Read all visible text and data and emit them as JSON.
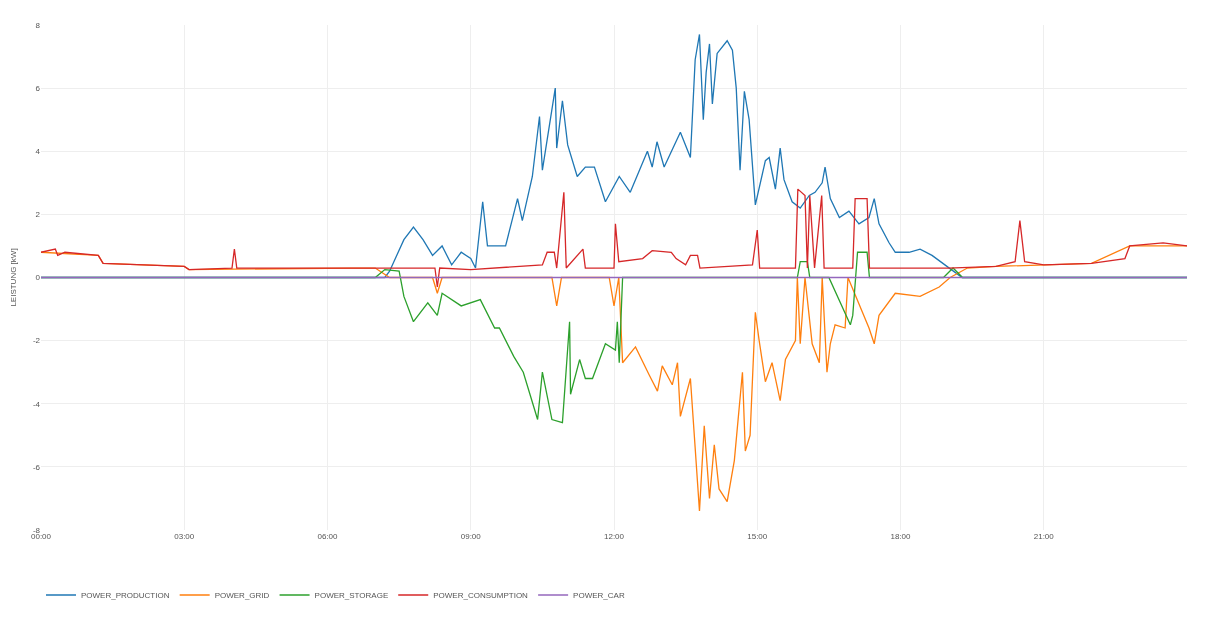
{
  "chart_data": {
    "type": "line",
    "ylabel": "LEISTUNG [kW]",
    "xlim": [
      0,
      24
    ],
    "xticks": [
      {
        "value": 0,
        "label": "00:00"
      },
      {
        "value": 3,
        "label": "03:00"
      },
      {
        "value": 6,
        "label": "06:00"
      },
      {
        "value": 9,
        "label": "09:00"
      },
      {
        "value": 12,
        "label": "12:00"
      },
      {
        "value": 15,
        "label": "15:00"
      },
      {
        "value": 18,
        "label": "18:00"
      },
      {
        "value": 21,
        "label": "21:00"
      }
    ],
    "ylim": [
      -8,
      8
    ],
    "yticks": [
      -8,
      -6,
      -4,
      -2,
      0,
      2,
      4,
      6,
      8
    ],
    "grid": true,
    "legend": "bottom",
    "marker": "none",
    "line_style": "solid",
    "series": [
      {
        "name": "POWER_PRODUCTION",
        "color": "#1f77b4",
        "x": [
          0,
          7.2,
          7.3,
          7.6,
          7.8,
          8.0,
          8.2,
          8.4,
          8.6,
          8.8,
          9.0,
          9.1,
          9.25,
          9.35,
          9.73,
          9.98,
          10.08,
          10.29,
          10.44,
          10.5,
          10.77,
          10.8,
          10.92,
          11.03,
          11.23,
          11.4,
          11.59,
          11.82,
          12.11,
          12.34,
          12.7,
          12.8,
          12.9,
          13.05,
          13.39,
          13.6,
          13.7,
          13.79,
          13.87,
          13.93,
          14.0,
          14.06,
          14.16,
          14.37,
          14.48,
          14.56,
          14.64,
          14.73,
          14.83,
          14.96,
          15.17,
          15.25,
          15.38,
          15.48,
          15.56,
          15.73,
          15.9,
          16.09,
          16.21,
          16.36,
          16.42,
          16.53,
          16.72,
          16.92,
          17.13,
          17.34,
          17.45,
          17.55,
          17.76,
          17.89,
          18.18,
          18.41,
          18.66,
          18.93,
          19.29,
          24
        ],
        "values": [
          0,
          0,
          0.2,
          1.2,
          1.6,
          1.2,
          0.7,
          1.0,
          0.4,
          0.8,
          0.6,
          0.3,
          2.4,
          1.0,
          1.0,
          2.5,
          1.8,
          3.2,
          5.1,
          3.4,
          6.0,
          4.1,
          5.6,
          4.2,
          3.2,
          3.5,
          3.5,
          2.4,
          3.2,
          2.7,
          4.0,
          3.5,
          4.3,
          3.5,
          4.6,
          3.8,
          6.9,
          7.7,
          5.0,
          6.5,
          7.4,
          5.5,
          7.1,
          7.5,
          7.2,
          6.0,
          3.4,
          5.9,
          5.0,
          2.3,
          3.7,
          3.8,
          2.8,
          4.1,
          3.1,
          2.4,
          2.2,
          2.6,
          2.7,
          3.0,
          3.5,
          2.5,
          1.9,
          2.1,
          1.7,
          1.9,
          2.5,
          1.7,
          1.1,
          0.8,
          0.8,
          0.9,
          0.7,
          0.4,
          0,
          0
        ]
      },
      {
        "name": "POWER_GRID",
        "color": "#ff7f0e",
        "x": [
          0,
          1.2,
          1.3,
          3.0,
          3.1,
          6.5,
          7.0,
          7.3,
          8.2,
          8.3,
          8.4,
          10.7,
          10.8,
          10.9,
          11.9,
          12.0,
          12.1,
          12.18,
          12.45,
          12.74,
          12.91,
          13.01,
          13.22,
          13.33,
          13.39,
          13.6,
          13.7,
          13.79,
          13.89,
          14.0,
          14.1,
          14.2,
          14.37,
          14.52,
          14.69,
          14.75,
          14.85,
          14.96,
          15.04,
          15.17,
          15.31,
          15.48,
          15.59,
          15.8,
          15.84,
          15.9,
          16.0,
          16.15,
          16.3,
          16.36,
          16.46,
          16.53,
          16.63,
          16.84,
          16.9,
          17.34,
          17.45,
          17.55,
          17.89,
          18.41,
          18.81,
          19.04,
          19.4,
          20,
          22,
          22.8,
          24
        ],
        "values": [
          0.8,
          0.7,
          0.45,
          0.35,
          0.25,
          0.3,
          0.3,
          0,
          0,
          -0.5,
          0,
          0,
          -0.9,
          0,
          0,
          -0.9,
          0,
          -2.7,
          -2.2,
          -3.1,
          -3.6,
          -2.8,
          -3.4,
          -2.7,
          -4.4,
          -3.2,
          -5.4,
          -7.4,
          -4.7,
          -7.0,
          -5.3,
          -6.7,
          -7.1,
          -5.8,
          -3.0,
          -5.5,
          -5.0,
          -1.1,
          -2.0,
          -3.3,
          -2.7,
          -3.9,
          -2.6,
          -2.0,
          0,
          -2.1,
          0,
          -2.1,
          -2.7,
          0,
          -3.0,
          -2.1,
          -1.5,
          -1.6,
          0,
          -1.6,
          -2.1,
          -1.2,
          -0.5,
          -0.6,
          -0.3,
          0,
          0.3,
          0.35,
          0.45,
          1.0,
          1.0
        ]
      },
      {
        "name": "POWER_STORAGE",
        "color": "#2ca02c",
        "x": [
          0,
          7.0,
          7.2,
          7.5,
          7.6,
          7.8,
          8.1,
          8.3,
          8.4,
          8.8,
          9.2,
          9.5,
          9.6,
          9.9,
          10.1,
          10.4,
          10.5,
          10.7,
          10.92,
          11.07,
          11.09,
          11.28,
          11.4,
          11.55,
          11.82,
          12.03,
          12.07,
          12.11,
          12.18,
          15.84,
          15.9,
          16.05,
          16.1,
          16.5,
          16.95,
          17.0,
          17.1,
          17.3,
          17.35,
          17.4,
          18.9,
          19.1,
          19.3,
          24
        ],
        "values": [
          0,
          0,
          0.25,
          0.2,
          -0.6,
          -1.4,
          -0.8,
          -1.2,
          -0.5,
          -0.9,
          -0.7,
          -1.6,
          -1.6,
          -2.5,
          -3.0,
          -4.5,
          -3.0,
          -4.5,
          -4.6,
          -1.4,
          -3.7,
          -2.6,
          -3.2,
          -3.2,
          -2.1,
          -2.3,
          -1.4,
          -2.7,
          0,
          0,
          0.5,
          0.5,
          0,
          0,
          -1.5,
          -1.2,
          0.8,
          0.8,
          0,
          0,
          0,
          0.3,
          0,
          0
        ]
      },
      {
        "name": "POWER_CONSUMPTION",
        "color": "#d62728",
        "x": [
          0,
          0.3,
          0.35,
          0.5,
          1.2,
          1.3,
          3.0,
          3.1,
          4.0,
          4.05,
          4.1,
          7.5,
          8.25,
          8.3,
          8.35,
          9.0,
          10.5,
          10.6,
          10.75,
          10.8,
          10.95,
          11.0,
          11.35,
          11.4,
          12.0,
          12.03,
          12.1,
          12.6,
          12.8,
          13.2,
          13.3,
          13.5,
          13.6,
          13.75,
          13.8,
          14.9,
          15.0,
          15.05,
          15.8,
          15.85,
          16.0,
          16.05,
          16.1,
          16.2,
          16.35,
          16.4,
          17.0,
          17.05,
          17.3,
          17.35,
          19,
          20,
          20.4,
          20.5,
          20.6,
          21,
          22,
          22.7,
          22.8,
          23.5,
          24
        ],
        "values": [
          0.8,
          0.9,
          0.7,
          0.8,
          0.7,
          0.45,
          0.35,
          0.25,
          0.3,
          0.9,
          0.3,
          0.3,
          0.3,
          -0.3,
          0.3,
          0.25,
          0.4,
          0.8,
          0.8,
          0.3,
          2.7,
          0.3,
          0.9,
          0.3,
          0.3,
          1.7,
          0.5,
          0.6,
          0.85,
          0.8,
          0.6,
          0.4,
          0.7,
          0.7,
          0.3,
          0.4,
          1.5,
          0.3,
          0.3,
          2.8,
          2.6,
          0.3,
          2.6,
          0.3,
          2.6,
          0.3,
          0.3,
          2.5,
          2.5,
          0.3,
          0.3,
          0.35,
          0.5,
          1.8,
          0.5,
          0.4,
          0.45,
          0.6,
          1.0,
          1.1,
          1.0
        ]
      },
      {
        "name": "POWER_CAR",
        "color": "#9467bd",
        "x": [
          0,
          24
        ],
        "values": [
          0,
          0
        ]
      }
    ]
  }
}
